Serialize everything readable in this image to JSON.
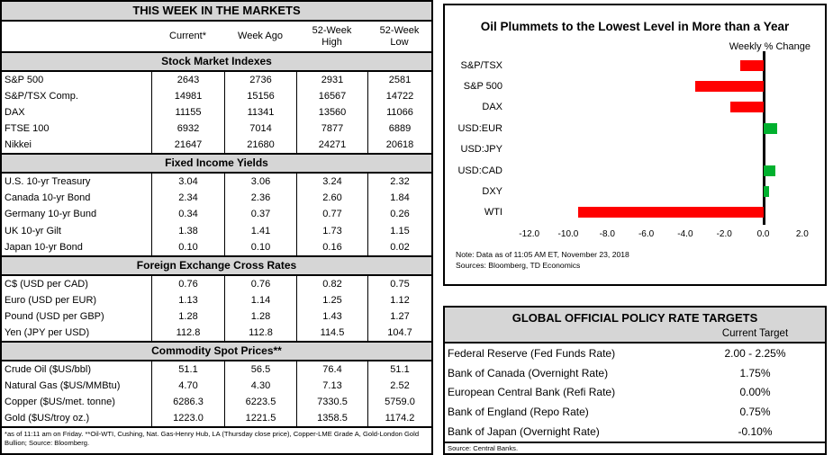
{
  "colors": {
    "bar_negative": "#FF0000",
    "bar_positive": "#00B02E",
    "header_gray": "#D6D6D6"
  },
  "chart_data": [
    {
      "type": "table",
      "title": "THIS WEEK IN THE MARKETS",
      "columns": [
        "",
        "Current*",
        "Week Ago",
        "52-Week\nHigh",
        "52-Week\nLow"
      ],
      "sections": [
        {
          "header": "Stock Market Indexes",
          "rows": [
            [
              "S&P 500",
              "2643",
              "2736",
              "2931",
              "2581"
            ],
            [
              "S&P/TSX Comp.",
              "14981",
              "15156",
              "16567",
              "14722"
            ],
            [
              "DAX",
              "11155",
              "11341",
              "13560",
              "11066"
            ],
            [
              "FTSE 100",
              "6932",
              "7014",
              "7877",
              "6889"
            ],
            [
              "Nikkei",
              "21647",
              "21680",
              "24271",
              "20618"
            ]
          ]
        },
        {
          "header": "Fixed Income Yields",
          "rows": [
            [
              "U.S. 10-yr Treasury",
              "3.04",
              "3.06",
              "3.24",
              "2.32"
            ],
            [
              "Canada 10-yr Bond",
              "2.34",
              "2.36",
              "2.60",
              "1.84"
            ],
            [
              "Germany 10-yr Bund",
              "0.34",
              "0.37",
              "0.77",
              "0.26"
            ],
            [
              "UK 10-yr Gilt",
              "1.38",
              "1.41",
              "1.73",
              "1.15"
            ],
            [
              "Japan 10-yr Bond",
              "0.10",
              "0.10",
              "0.16",
              "0.02"
            ]
          ]
        },
        {
          "header": "Foreign Exchange Cross Rates",
          "rows": [
            [
              "C$ (USD per CAD)",
              "0.76",
              "0.76",
              "0.82",
              "0.75"
            ],
            [
              "Euro (USD per EUR)",
              "1.13",
              "1.14",
              "1.25",
              "1.12"
            ],
            [
              "Pound (USD per GBP)",
              "1.28",
              "1.28",
              "1.43",
              "1.27"
            ],
            [
              "Yen (JPY per USD)",
              "112.8",
              "112.8",
              "114.5",
              "104.7"
            ]
          ]
        },
        {
          "header": "Commodity Spot Prices**",
          "rows": [
            [
              "Crude Oil ($US/bbl)",
              "51.1",
              "56.5",
              "76.4",
              "51.1"
            ],
            [
              "Natural Gas ($US/MMBtu)",
              "4.70",
              "4.30",
              "7.13",
              "2.52"
            ],
            [
              "Copper ($US/met. tonne)",
              "6286.3",
              "6223.5",
              "7330.5",
              "5759.0"
            ],
            [
              "Gold ($US/troy oz.)",
              "1223.0",
              "1221.5",
              "1358.5",
              "1174.2"
            ]
          ]
        }
      ],
      "footnote": "*as of 11:11 am on Friday. **Oil-WTI, Cushing, Nat. Gas-Henry Hub, LA (Thursday close price), Copper-LME Grade A, Gold-London Gold Bullion; Source: Bloomberg."
    },
    {
      "type": "bar",
      "orientation": "horizontal",
      "title": "Oil Plummets to the Lowest Level in More than a Year",
      "value_axis_label": "Weekly % Change",
      "categories": [
        "S&P/TSX",
        "S&P 500",
        "DAX",
        "USD:EUR",
        "USD:JPY",
        "USD:CAD",
        "DXY",
        "WTI"
      ],
      "values": [
        -1.2,
        -3.5,
        -1.7,
        0.7,
        0.0,
        0.6,
        0.3,
        -9.5
      ],
      "xtick_labels": [
        "-12.0",
        "-10.0",
        "-8.0",
        "-6.0",
        "-4.0",
        "-2.0",
        "0.0",
        "2.0"
      ],
      "xtick_values": [
        -12,
        -10,
        -8,
        -6,
        -4,
        -2,
        0,
        2
      ],
      "xlim": [
        -13,
        2.7
      ],
      "grid": false,
      "legend_position": "none",
      "note": "Note: Data as of  11:05 AM  ET,  November 23, 2018",
      "sources": "Sources: Bloomberg, TD Economics"
    },
    {
      "type": "table",
      "title": "GLOBAL OFFICIAL POLICY RATE TARGETS",
      "column_header": "Current Target",
      "rows": [
        [
          "Federal Reserve (Fed Funds Rate)",
          "2.00 - 2.25%"
        ],
        [
          "Bank of Canada (Overnight Rate)",
          "1.75%"
        ],
        [
          "European Central Bank (Refi Rate)",
          "0.00%"
        ],
        [
          "Bank of England (Repo Rate)",
          "0.75%"
        ],
        [
          "Bank of Japan (Overnight Rate)",
          "-0.10%"
        ]
      ],
      "source": "Source: Central Banks."
    }
  ]
}
